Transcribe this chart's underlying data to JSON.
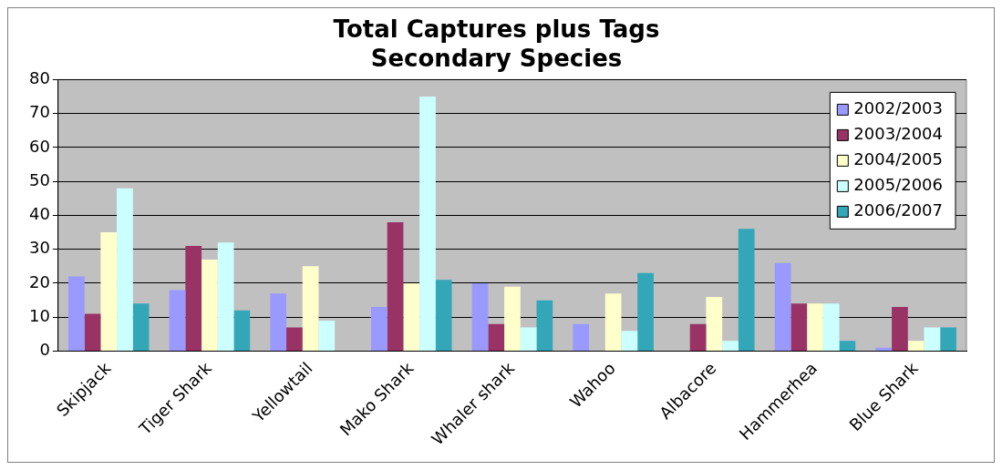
{
  "chart_data": {
    "type": "bar",
    "title": "Total Captures plus Tags\nSecondary Species",
    "categories": [
      "Skipjack",
      "Tiger Shark",
      "Yellowtail",
      "Mako Shark",
      "Whaler shark",
      "Wahoo",
      "Albacore",
      "Hammerhea",
      "Blue Shark"
    ],
    "series": [
      {
        "name": "2002/2003",
        "color": "#9999ff",
        "values": [
          22,
          18,
          17,
          13,
          20,
          8,
          null,
          26,
          1
        ]
      },
      {
        "name": "2003/2004",
        "color": "#993366",
        "values": [
          11,
          31,
          7,
          38,
          8,
          null,
          8,
          14,
          13
        ]
      },
      {
        "name": "2004/2005",
        "color": "#ffffcc",
        "values": [
          35,
          27,
          25,
          20,
          19,
          17,
          16,
          14,
          3
        ]
      },
      {
        "name": "2005/2006",
        "color": "#ccffff",
        "values": [
          48,
          32,
          9,
          75,
          7,
          6,
          3,
          14,
          7
        ]
      },
      {
        "name": "2006/2007",
        "color": "#33a6b8",
        "values": [
          14,
          12,
          null,
          21,
          15,
          23,
          36,
          3,
          7
        ]
      }
    ],
    "ylim": [
      0,
      80
    ],
    "yticks": [
      0,
      10,
      20,
      30,
      40,
      50,
      60,
      70,
      80
    ],
    "grid": "y",
    "legend": "top right"
  }
}
